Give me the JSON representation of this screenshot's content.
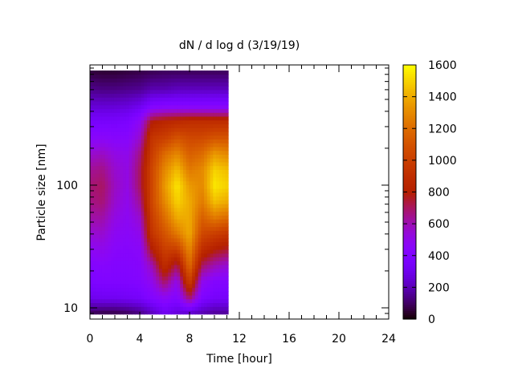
{
  "chart_data": {
    "type": "heatmap",
    "title": "dN / d log d (3/19/19)",
    "xlabel": "Time [hour]",
    "ylabel": "Particle size [nm]",
    "xlim": [
      0,
      24
    ],
    "ylim_log": [
      8.1,
      955
    ],
    "xticks": [
      "0",
      "4",
      "8",
      "12",
      "16",
      "20",
      "24"
    ],
    "xtick_values": [
      0,
      4,
      8,
      12,
      16,
      20,
      24
    ],
    "yticks": [
      "10",
      "100"
    ],
    "ytick_values": [
      10,
      100
    ],
    "y_scale": "log",
    "colorbar": {
      "range": [
        0,
        1600
      ],
      "ticks": [
        "0",
        "200",
        "400",
        "600",
        "800",
        "1000",
        "1200",
        "1400",
        "1600"
      ],
      "tick_values": [
        0,
        200,
        400,
        600,
        800,
        1000,
        1200,
        1400,
        1600
      ],
      "palette": "black-blue-violet-red-orange-yellow"
    },
    "data_time_end": 11.1,
    "times": [
      0,
      1,
      2,
      3,
      4,
      5,
      6,
      7,
      8,
      9,
      10,
      11
    ],
    "sizes": [
      8.9,
      12.2,
      16.4,
      22.2,
      30,
      40.5,
      54.6,
      73.7,
      99.5,
      134,
      181,
      245,
      330,
      446,
      602,
      860
    ],
    "values": [
      [
        80,
        300,
        380,
        420,
        480,
        550,
        620,
        660,
        680,
        640,
        560,
        450,
        350,
        250,
        150,
        60
      ],
      [
        60,
        320,
        400,
        440,
        500,
        560,
        620,
        680,
        700,
        660,
        580,
        460,
        360,
        250,
        140,
        50
      ],
      [
        60,
        320,
        400,
        420,
        450,
        480,
        520,
        560,
        580,
        560,
        520,
        440,
        360,
        250,
        140,
        50
      ],
      [
        80,
        330,
        400,
        420,
        440,
        460,
        480,
        500,
        520,
        520,
        500,
        440,
        380,
        260,
        150,
        60
      ],
      [
        120,
        350,
        420,
        440,
        460,
        500,
        560,
        640,
        700,
        700,
        660,
        560,
        480,
        300,
        160,
        70
      ],
      [
        200,
        420,
        500,
        600,
        800,
        950,
        1000,
        1050,
        1050,
        1050,
        1000,
        950,
        800,
        400,
        200,
        80
      ],
      [
        300,
        480,
        700,
        900,
        1000,
        1100,
        1200,
        1300,
        1350,
        1300,
        1200,
        1000,
        850,
        420,
        200,
        90
      ],
      [
        250,
        420,
        500,
        700,
        1000,
        1250,
        1400,
        1500,
        1550,
        1450,
        1300,
        1100,
        880,
        420,
        220,
        90
      ],
      [
        200,
        700,
        1000,
        1200,
        1300,
        1400,
        1400,
        1400,
        1350,
        1250,
        1150,
        1050,
        900,
        420,
        220,
        90
      ],
      [
        180,
        400,
        500,
        700,
        900,
        1050,
        1150,
        1250,
        1300,
        1300,
        1200,
        1050,
        900,
        420,
        220,
        90
      ],
      [
        150,
        350,
        420,
        600,
        800,
        1000,
        1250,
        1450,
        1550,
        1500,
        1350,
        1100,
        900,
        420,
        220,
        90
      ],
      [
        150,
        350,
        420,
        550,
        750,
        950,
        1200,
        1400,
        1500,
        1450,
        1300,
        1100,
        900,
        420,
        220,
        90
      ]
    ]
  }
}
